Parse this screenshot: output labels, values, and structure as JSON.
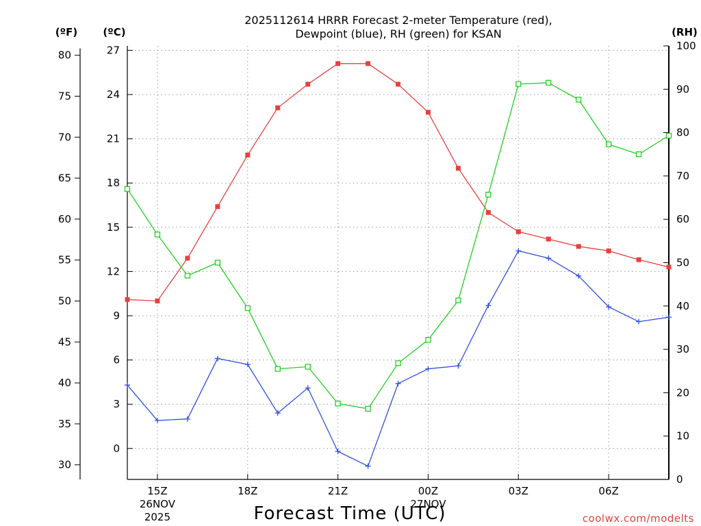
{
  "chart_data": {
    "type": "line",
    "title_lines": [
      "2025112614 HRRR Forecast 2-meter Temperature (red),",
      "Dewpoint (blue), RH (green) for KSAN"
    ],
    "xlabel": "Forecast Time (UTC)",
    "credit": "coolwx.com/modelts",
    "units": {
      "fahrenheit": "(ºF)",
      "celsius": "(ºC)",
      "rh": "(RH)"
    },
    "x_hours": [
      14,
      15,
      16,
      17,
      18,
      19,
      20,
      21,
      22,
      23,
      24,
      25,
      26,
      27,
      28,
      29,
      30,
      31,
      32
    ],
    "xlim": [
      14,
      32
    ],
    "x_ticks": [
      {
        "hour": 15,
        "label": "15Z",
        "date": "26NOV",
        "year": "2025"
      },
      {
        "hour": 18,
        "label": "18Z"
      },
      {
        "hour": 21,
        "label": "21Z"
      },
      {
        "hour": 24,
        "label": "00Z",
        "date": "27NOV"
      },
      {
        "hour": 27,
        "label": "03Z"
      },
      {
        "hour": 30,
        "label": "06Z"
      }
    ],
    "celsius_axis": {
      "ylim": [
        -2.1,
        27.3
      ],
      "ticks": [
        "0",
        "3",
        "6",
        "9",
        "12",
        "15",
        "18",
        "21",
        "24",
        "27"
      ]
    },
    "fahrenheit_axis": {
      "ticks": [
        "30",
        "35",
        "40",
        "45",
        "50",
        "55",
        "60",
        "65",
        "70",
        "75",
        "80"
      ]
    },
    "rh_axis": {
      "ylim": [
        0,
        100
      ],
      "ticks": [
        "0",
        "10",
        "20",
        "30",
        "40",
        "50",
        "60",
        "70",
        "80",
        "90",
        "100"
      ]
    },
    "series": [
      {
        "name": "Temperature",
        "axis": "celsius",
        "color": "#e84040",
        "marker": "filled-square",
        "values": [
          10.1,
          10.0,
          12.9,
          16.4,
          19.9,
          23.1,
          24.7,
          26.1,
          26.1,
          24.7,
          22.8,
          19.0,
          16.0,
          14.7,
          14.2,
          13.7,
          13.4,
          12.8,
          12.3
        ]
      },
      {
        "name": "Dewpoint",
        "axis": "celsius",
        "color": "#3050e0",
        "marker": "plus",
        "values": [
          4.3,
          1.9,
          2.0,
          6.1,
          5.7,
          2.4,
          4.1,
          -0.2,
          -1.2,
          4.4,
          5.4,
          5.6,
          9.7,
          13.4,
          12.9,
          11.7,
          9.6,
          8.6,
          8.9
        ]
      },
      {
        "name": "RH",
        "axis": "rh",
        "color": "#20d020",
        "marker": "open-square",
        "values": [
          67,
          56.5,
          47,
          50,
          39.5,
          25.5,
          26,
          17.5,
          16.3,
          26.8,
          32.2,
          41.3,
          65.7,
          91.2,
          91.5,
          87.6,
          77.3,
          75,
          79.3
        ]
      }
    ]
  }
}
